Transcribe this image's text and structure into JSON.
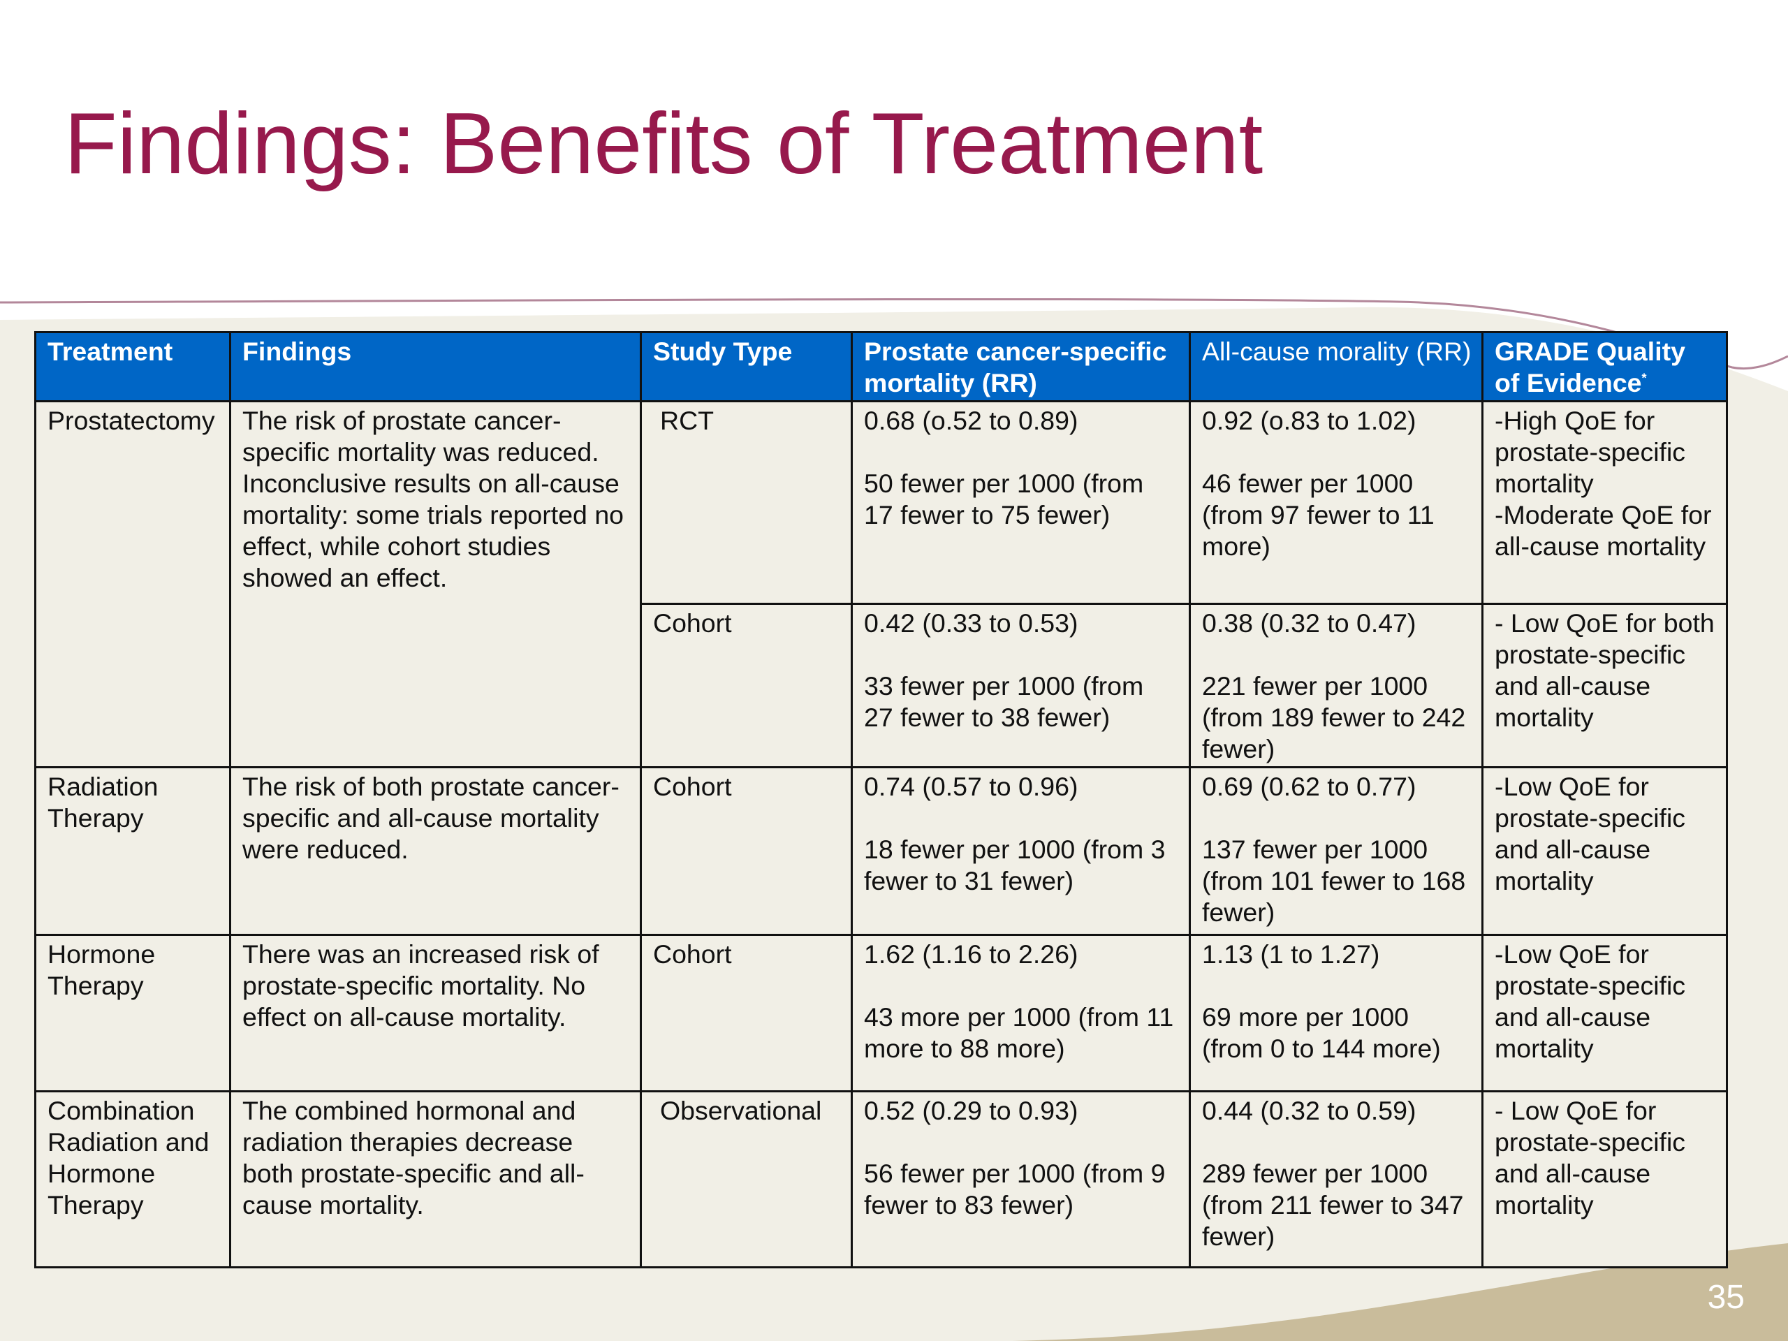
{
  "slide": {
    "title": "Findings: Benefits of Treatment",
    "page_number": "35"
  },
  "colors": {
    "title": "#97194c",
    "header_bg": "#0066c6",
    "cell_bg": "#f1efe6",
    "decor_tan": "#c9bc9b",
    "decor_line": "#b3879a"
  },
  "table": {
    "headers": {
      "treatment": "Treatment",
      "findings": "Findings",
      "study_type": "Study Type",
      "pcsm": "Prostate cancer-specific mortality (RR)",
      "acm": "All-cause morality (RR)",
      "grade": "GRADE Quality of Evidence",
      "grade_mark": "*"
    },
    "rows": {
      "prostatectomy": {
        "treatment": "Prostatectomy",
        "findings": "The risk of prostate cancer-specific mortality was reduced. Inconclusive results on all-cause mortality: some trials reported no effect, while cohort studies showed an effect.",
        "rct": {
          "study": "RCT",
          "pcsm_rr": "0.68 (o.52 to 0.89)",
          "pcsm_abs": "50 fewer per 1000 (from 17 fewer to 75 fewer)",
          "acm_rr": "0.92 (o.83 to 1.02)",
          "acm_abs": "46 fewer per 1000 (from 97 fewer to 11 more)",
          "grade": "-High QoE for prostate-specific mortality\n-Moderate QoE for all-cause mortality"
        },
        "cohort": {
          "study": "Cohort",
          "pcsm_rr": "0.42 (0.33 to 0.53)",
          "pcsm_abs": "33 fewer per 1000 (from 27 fewer to 38 fewer)",
          "acm_rr": "0.38 (0.32 to 0.47)",
          "acm_abs": "221 fewer per 1000 (from 189 fewer to 242 fewer)",
          "grade": "- Low QoE for both prostate-specific and all-cause mortality"
        }
      },
      "radiation": {
        "treatment": "Radiation Therapy",
        "findings": "The risk of both prostate cancer-specific and all-cause mortality were reduced.",
        "study": "Cohort",
        "pcsm_rr": "0.74 (0.57 to 0.96)",
        "pcsm_abs": "18 fewer per 1000 (from 3 fewer to 31 fewer)",
        "acm_rr": "0.69 (0.62 to 0.77)",
        "acm_abs": "137 fewer per 1000 (from 101 fewer to 168 fewer)",
        "grade": "-Low QoE for prostate-specific and all-cause mortality"
      },
      "hormone": {
        "treatment": "Hormone Therapy",
        "findings": "There was an increased risk of prostate-specific mortality. No effect on all-cause mortality.",
        "study": "Cohort",
        "pcsm_rr": "1.62 (1.16 to 2.26)",
        "pcsm_abs": "43 more per 1000 (from 11 more to 88 more)",
        "acm_rr": "1.13 (1 to 1.27)",
        "acm_abs": "69 more per 1000 (from 0 to 144 more)",
        "grade": "-Low QoE for prostate-specific and all-cause mortality"
      },
      "combination": {
        "treatment": "Combination Radiation and Hormone Therapy",
        "findings": "The combined hormonal and radiation therapies decrease both prostate-specific and all-cause mortality.",
        "study": "Observational",
        "pcsm_rr": "0.52 (0.29 to 0.93)",
        "pcsm_abs": "56 fewer per 1000 (from 9 fewer to 83 fewer)",
        "acm_rr": "0.44 (0.32 to 0.59)",
        "acm_abs": "289 fewer per 1000 (from 211 fewer to 347 fewer)",
        "grade": "- Low QoE for prostate-specific and all-cause mortality"
      }
    }
  }
}
